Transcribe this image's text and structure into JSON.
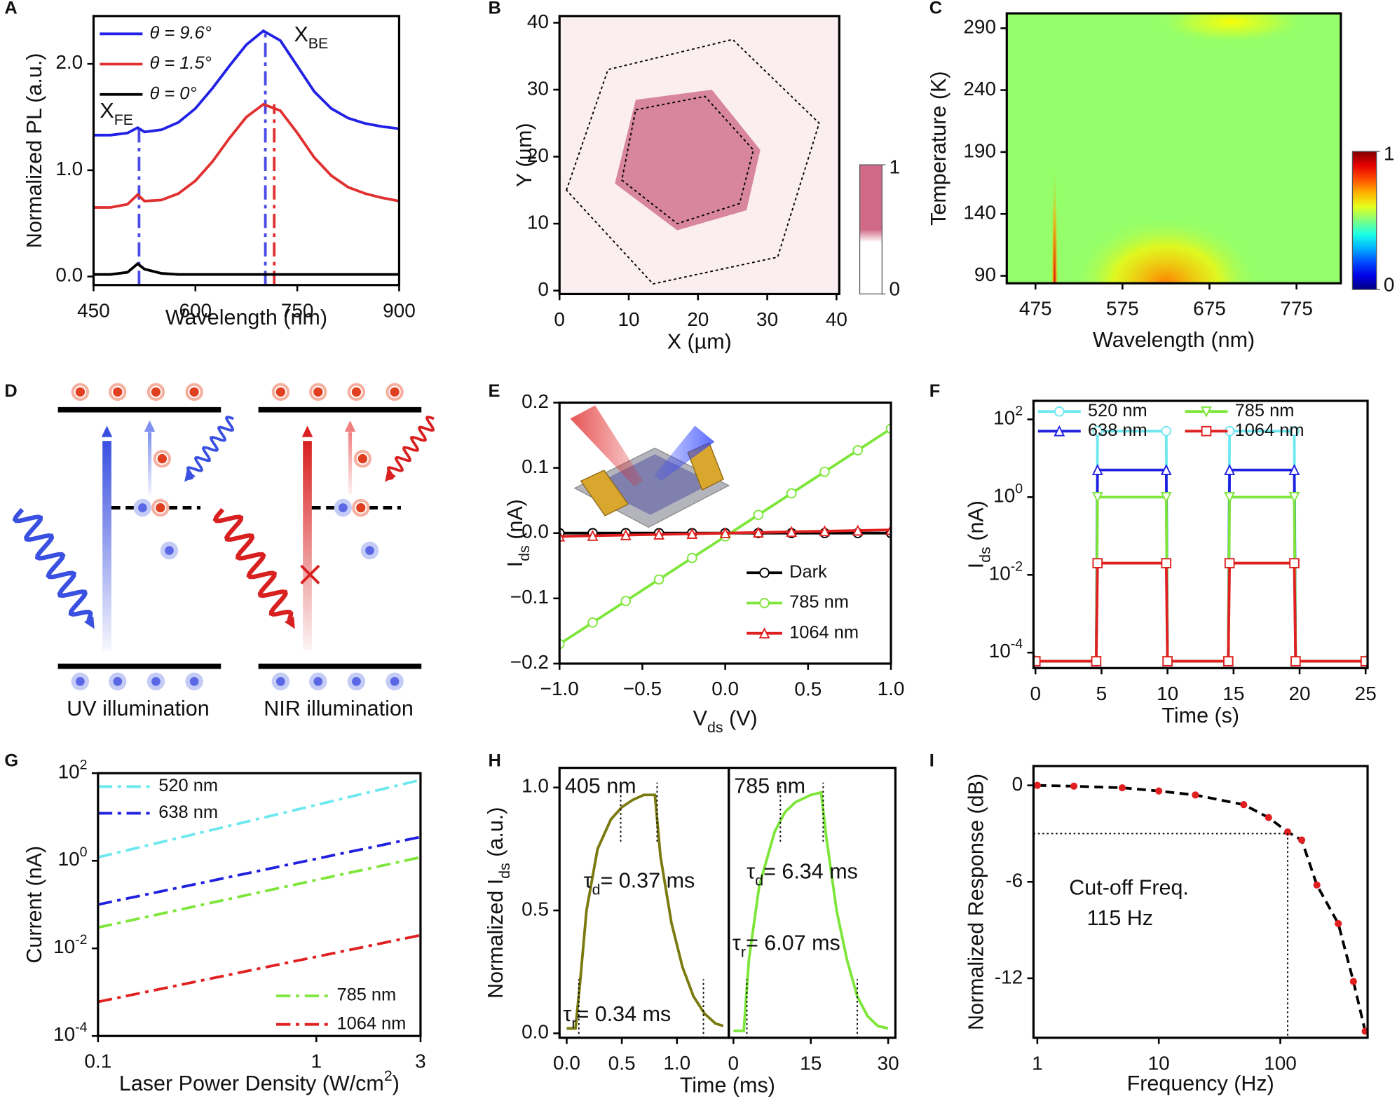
{
  "chart_data": [
    {
      "label": "A",
      "type": "line",
      "xlabel": "Wavelength (nm)",
      "ylabel": "Normalized PL (a.u.)",
      "xlim": [
        450,
        900
      ],
      "xticks": [
        450,
        600,
        750,
        900
      ],
      "ylim": [
        -0.08,
        2.45
      ],
      "yticks": [
        {
          "value": 0,
          "label": "0.0"
        },
        {
          "value": 1,
          "label": "1.0"
        },
        {
          "value": 2,
          "label": "2.0"
        }
      ],
      "x": [
        450,
        475,
        500,
        515,
        525,
        550,
        575,
        600,
        625,
        650,
        675,
        700,
        725,
        750,
        775,
        800,
        825,
        850,
        875,
        900
      ],
      "series": [
        {
          "name": "θ = 9.6°",
          "color": "#2222e6",
          "values": [
            1.33,
            1.33,
            1.35,
            1.4,
            1.36,
            1.38,
            1.45,
            1.58,
            1.77,
            1.98,
            2.18,
            2.31,
            2.22,
            1.98,
            1.74,
            1.58,
            1.49,
            1.44,
            1.41,
            1.39
          ]
        },
        {
          "name": "θ = 1.5°",
          "color": "#e03030",
          "values": [
            0.65,
            0.65,
            0.68,
            0.77,
            0.71,
            0.72,
            0.78,
            0.9,
            1.08,
            1.3,
            1.5,
            1.62,
            1.56,
            1.35,
            1.12,
            0.95,
            0.84,
            0.78,
            0.74,
            0.71
          ]
        },
        {
          "name": "θ = 0°",
          "color": "#000000",
          "values": [
            0.02,
            0.02,
            0.04,
            0.12,
            0.07,
            0.03,
            0.02,
            0.02,
            0.02,
            0.02,
            0.02,
            0.02,
            0.02,
            0.02,
            0.02,
            0.02,
            0.02,
            0.02,
            0.02,
            0.02
          ]
        }
      ],
      "markers": [
        {
          "x": 517,
          "top": 1.4,
          "color": "#4a4ae6"
        },
        {
          "x": 703,
          "top": 2.31,
          "color": "#4a4ae6"
        },
        {
          "x": 716,
          "top": 1.62,
          "color": "#e03030"
        }
      ],
      "annotations": [
        [
          {
            "text": "X"
          },
          {
            "text": "FE",
            "shift": "sub"
          }
        ],
        [
          {
            "text": "X"
          },
          {
            "text": "BE",
            "shift": "sub"
          }
        ]
      ]
    },
    {
      "label": "B",
      "type": "map",
      "xlabel": "X (µm)",
      "ylabel": "Y (µm)",
      "xlim": [
        0,
        40.4
      ],
      "xticks": [
        0,
        10,
        20,
        30,
        40
      ],
      "ylim": [
        -0.5,
        41
      ],
      "yticks": [
        0,
        10,
        20,
        30,
        40
      ],
      "background": "#fbeef1",
      "fill_color": "#d8869e",
      "region": [
        [
          11,
          28.5
        ],
        [
          22,
          30
        ],
        [
          29,
          21
        ],
        [
          27,
          12
        ],
        [
          17,
          9
        ],
        [
          8,
          16
        ]
      ],
      "outlines": [
        [
          [
            1,
            15
          ],
          [
            7,
            33
          ],
          [
            25,
            37.5
          ],
          [
            37.5,
            25
          ],
          [
            31.5,
            5
          ],
          [
            13.5,
            1
          ]
        ],
        [
          [
            11,
            27
          ],
          [
            21,
            29
          ],
          [
            28,
            21
          ],
          [
            26,
            13
          ],
          [
            17,
            10
          ],
          [
            9,
            16.5
          ]
        ]
      ],
      "clim": [
        0,
        1
      ],
      "cticks": [
        0,
        1
      ],
      "colors": [
        "#ffffff",
        "#d06a88"
      ]
    },
    {
      "label": "C",
      "type": "heatmap",
      "xlabel": "Wavelength (nm)",
      "ylabel": "Temperature (K)",
      "xlim": [
        442,
        826
      ],
      "xticks": [
        475,
        575,
        675,
        775
      ],
      "ylim": [
        84,
        302
      ],
      "yticks": [
        90,
        140,
        190,
        240,
        290
      ],
      "clim": [
        0,
        1
      ],
      "cticks": [
        0,
        1
      ],
      "background_level": 0.52,
      "hotspots": [
        {
          "x": 625,
          "y": 84,
          "wx": 110,
          "wy": 55,
          "level": 0.75
        },
        {
          "x": 700,
          "y": 295,
          "wx": 90,
          "wy": 18,
          "level": 0.62
        },
        {
          "x": 497,
          "y": 84,
          "wx": 4,
          "wy": 100,
          "level": 0.9
        }
      ]
    },
    {
      "label": "D",
      "type": "diagram",
      "captions": [
        "UV illumination",
        "NIR illumination"
      ]
    },
    {
      "label": "E",
      "type": "line",
      "xlabel": [
        {
          "text": "V"
        },
        {
          "text": "ds",
          "shift": "sub"
        },
        {
          "text": " (V)"
        }
      ],
      "ylabel": [
        {
          "text": "I"
        },
        {
          "text": "ds",
          "shift": "sub"
        },
        {
          "text": " (nA)"
        }
      ],
      "xlim": [
        -1,
        1
      ],
      "xticks": [
        {
          "value": -1,
          "label": "−1.0"
        },
        {
          "value": -0.5,
          "label": "−0.5"
        },
        {
          "value": 0,
          "label": "0.0"
        },
        0.5,
        {
          "value": 1,
          "label": "1.0"
        }
      ],
      "ylim": [
        -0.2,
        0.2
      ],
      "yticks": [
        {
          "value": -0.2,
          "label": "−0.2"
        },
        {
          "value": -0.1,
          "label": "−0.1"
        },
        {
          "value": 0,
          "label": "0.0"
        },
        0.1,
        0.2
      ],
      "x": [
        -1,
        -0.8,
        -0.6,
        -0.4,
        -0.2,
        0,
        0.2,
        0.4,
        0.6,
        0.8,
        1
      ],
      "series": [
        {
          "name": "Dark",
          "color": "#000000",
          "marker": "circle",
          "values": [
            0,
            0,
            0,
            0,
            0,
            0,
            0,
            0,
            0,
            0,
            0
          ]
        },
        {
          "name": "785 nm",
          "color": "#7ee63a",
          "marker": "circle",
          "values": [
            -0.17,
            -0.137,
            -0.104,
            -0.071,
            -0.038,
            -0.005,
            0.028,
            0.061,
            0.094,
            0.127,
            0.16
          ]
        },
        {
          "name": "1064 nm",
          "color": "#e02020",
          "marker": "triangle",
          "values": [
            -0.005,
            -0.004,
            -0.003,
            -0.002,
            -0.001,
            0,
            0.001,
            0.002,
            0.003,
            0.004,
            0.005
          ]
        }
      ]
    },
    {
      "label": "F",
      "type": "line",
      "log_y": true,
      "xlabel": "Time (s)",
      "ylabel": [
        {
          "text": "I"
        },
        {
          "text": "ds",
          "shift": "sub"
        },
        {
          "text": " (nA)"
        }
      ],
      "xlim": [
        -0.15,
        25.15
      ],
      "xticks": [
        0,
        5,
        10,
        15,
        20,
        25
      ],
      "ylim": [
        4e-05,
        300
      ],
      "yticks": [
        {
          "value": 0.0001,
          "label": "10",
          "sup": "-4"
        },
        {
          "value": 0.01,
          "label": "10",
          "sup": "-2"
        },
        {
          "value": 1,
          "label": "10",
          "sup": "0"
        },
        {
          "value": 100,
          "label": "10",
          "sup": "2"
        }
      ],
      "x": [
        0,
        4.6,
        4.7,
        9.9,
        10.0,
        14.6,
        14.7,
        19.6,
        19.7,
        25
      ],
      "series": [
        {
          "name": "520 nm",
          "color": "#6ee8f0",
          "marker": "circle",
          "values": [
            6e-05,
            6e-05,
            50,
            50,
            6e-05,
            6e-05,
            50,
            50,
            6e-05,
            6e-05
          ]
        },
        {
          "name": "638 nm",
          "color": "#2020e0",
          "marker": "triangle",
          "values": [
            6e-05,
            6e-05,
            5,
            5,
            6e-05,
            6e-05,
            5,
            5,
            6e-05,
            6e-05
          ]
        },
        {
          "name": "785 nm",
          "color": "#7ee63a",
          "marker": "triangle-down",
          "values": [
            6e-05,
            6e-05,
            1,
            1,
            6e-05,
            6e-05,
            1,
            1,
            6e-05,
            6e-05
          ]
        },
        {
          "name": "1064 nm",
          "color": "#e02020",
          "marker": "square",
          "values": [
            6e-05,
            6e-05,
            0.02,
            0.02,
            6e-05,
            6e-05,
            0.02,
            0.02,
            6e-05,
            6e-05
          ]
        }
      ]
    },
    {
      "label": "G",
      "type": "line",
      "log_x": true,
      "log_y": true,
      "xlabel": [
        {
          "text": "Laser Power Density (W/cm"
        },
        {
          "text": "2",
          "shift": "super"
        },
        {
          "text": ")"
        }
      ],
      "ylabel": "Current (nA)",
      "xlim": [
        0.1,
        3
      ],
      "xticks": [
        0.1,
        1,
        3
      ],
      "ylim": [
        0.0001,
        100
      ],
      "yticks": [
        {
          "value": 0.0001,
          "label": "10",
          "sup": "-4"
        },
        {
          "value": 0.01,
          "label": "10",
          "sup": "-2"
        },
        {
          "value": 1,
          "label": "10",
          "sup": "0"
        },
        {
          "value": 100,
          "label": "10",
          "sup": "2"
        }
      ],
      "series": [
        {
          "name": "520 nm",
          "color": "#6ee8f0",
          "style": "dashdot",
          "x": [
            0.1,
            3
          ],
          "values": [
            1.2,
            70
          ]
        },
        {
          "name": "638 nm",
          "color": "#2020e0",
          "style": "dashdot",
          "x": [
            0.1,
            3
          ],
          "values": [
            0.1,
            3.5
          ]
        },
        {
          "name": "785 nm",
          "color": "#7ee63a",
          "style": "dashdot",
          "x": [
            0.1,
            3
          ],
          "values": [
            0.03,
            1.2
          ]
        },
        {
          "name": "1064 nm",
          "color": "#e02020",
          "style": "dashdot",
          "x": [
            0.1,
            3
          ],
          "values": [
            0.0006,
            0.02
          ]
        }
      ]
    },
    {
      "label": "H",
      "type": "transient",
      "xlabel": "Time (ms)",
      "ylabel": [
        {
          "text": "Normalized I"
        },
        {
          "text": "ds",
          "shift": "sub"
        },
        {
          "text": " (a.u.)"
        }
      ],
      "ylim": [
        -0.018,
        1.08
      ],
      "yticks": [
        {
          "value": 0,
          "label": "0.0"
        },
        0.5,
        {
          "value": 1,
          "label": "1.0"
        }
      ],
      "panels": [
        {
          "name": "405 nm",
          "color": "#7a7a10",
          "xlim": [
            -0.065,
            1.47
          ],
          "xticks": [
            {
              "value": 0,
              "label": "0.0"
            },
            0.5,
            {
              "value": 1,
              "label": "1.0"
            }
          ],
          "x": [
            0,
            0.08,
            0.12,
            0.18,
            0.28,
            0.4,
            0.5,
            0.6,
            0.7,
            0.8,
            0.85,
            0.95,
            1.05,
            1.15,
            1.25,
            1.35,
            1.42
          ],
          "values": [
            0.02,
            0.02,
            0.2,
            0.5,
            0.75,
            0.87,
            0.92,
            0.95,
            0.97,
            0.97,
            0.72,
            0.45,
            0.27,
            0.15,
            0.08,
            0.04,
            0.03
          ],
          "markers": [
            {
              "x": 0.11,
              "level": 0.1
            },
            {
              "x": 0.49,
              "level": 0.9
            },
            {
              "x": 0.82,
              "level": 0.9
            },
            {
              "x": 1.24,
              "level": 0.1
            }
          ],
          "annotations": [
            [
              {
                "text": "τ"
              },
              {
                "text": "d",
                "shift": "sub"
              },
              {
                "text": "= 0.37 ms"
              }
            ],
            [
              {
                "text": "τ"
              },
              {
                "text": "r",
                "shift": "sub"
              },
              {
                "text": "= 0.34 ms"
              }
            ]
          ]
        },
        {
          "name": "785 nm",
          "color": "#7ee63a",
          "xlim": [
            -0.9,
            31.4
          ],
          "xticks": [
            0,
            15,
            30
          ],
          "x": [
            0,
            2,
            3,
            5,
            8,
            10,
            12,
            15,
            17,
            18,
            20,
            22,
            24,
            26,
            28,
            30
          ],
          "values": [
            0.01,
            0.01,
            0.3,
            0.6,
            0.82,
            0.9,
            0.94,
            0.97,
            0.98,
            0.8,
            0.5,
            0.3,
            0.15,
            0.07,
            0.03,
            0.02
          ],
          "markers": [
            {
              "x": 2.6,
              "level": 0.1
            },
            {
              "x": 9.1,
              "level": 0.9
            },
            {
              "x": 17.4,
              "level": 0.9
            },
            {
              "x": 24,
              "level": 0.1
            }
          ],
          "annotations": [
            [
              {
                "text": "τ"
              },
              {
                "text": "d",
                "shift": "sub"
              },
              {
                "text": "= 6.34 ms"
              }
            ],
            [
              {
                "text": "τ"
              },
              {
                "text": "r",
                "shift": "sub"
              },
              {
                "text": "= 6.07 ms"
              }
            ]
          ]
        }
      ]
    },
    {
      "label": "I",
      "type": "line",
      "log_x": true,
      "xlabel": "Frequency (Hz)",
      "ylabel": "Normalized Response (dB)",
      "xlim": [
        0.93,
        523
      ],
      "xticks": [
        1,
        10,
        100
      ],
      "ylim": [
        -15.7,
        1.2
      ],
      "yticks": [
        0,
        -6,
        -12
      ],
      "x": [
        1,
        2,
        5,
        10,
        20,
        50,
        80,
        115,
        150,
        200,
        300,
        400,
        500
      ],
      "series": [
        {
          "color": "#000000",
          "style": "dashed",
          "dot_color": "#e02020",
          "values": [
            0,
            -0.05,
            -0.15,
            -0.35,
            -0.6,
            -1.2,
            -2,
            -2.9,
            -3.4,
            -6.2,
            -8.6,
            -12.2,
            -15.3
          ]
        }
      ],
      "cutoff": {
        "x": 115,
        "y": -3
      },
      "annotations": [
        "Cut-off Freq.",
        "115 Hz"
      ]
    }
  ]
}
